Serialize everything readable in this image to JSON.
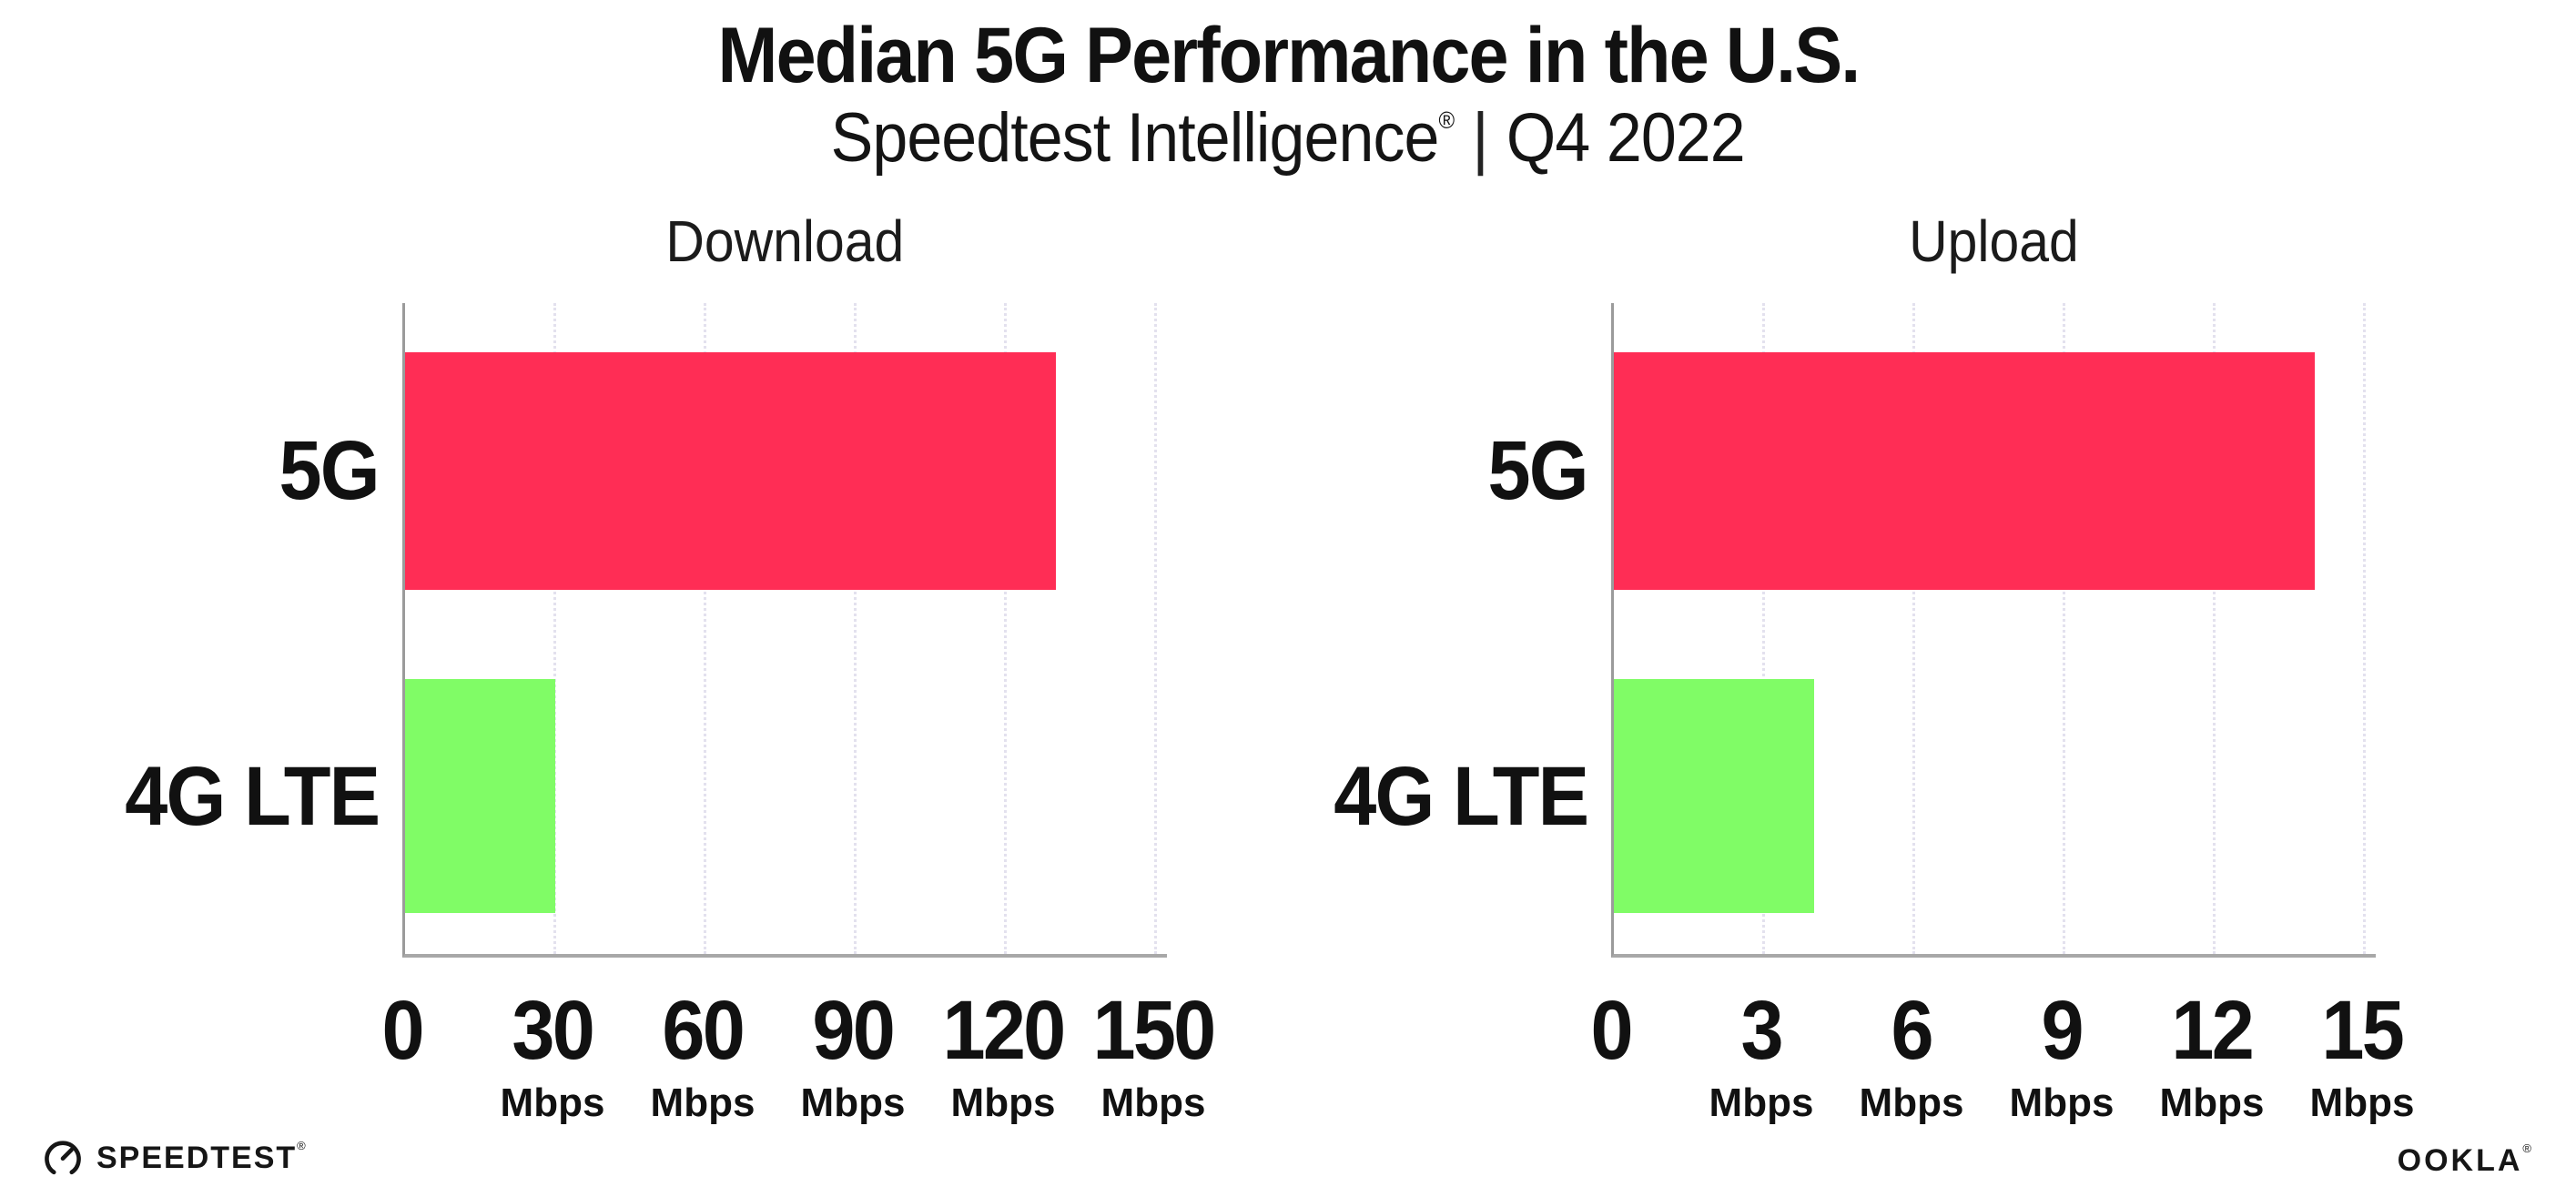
{
  "header": {
    "title": "Median 5G Performance in the U.S.",
    "subtitle_brand": "Speedtest Intelligence",
    "subtitle_reg": "®",
    "subtitle_sep": "|",
    "subtitle_period": "Q4 2022"
  },
  "chart_data": [
    {
      "type": "bar",
      "orientation": "horizontal",
      "title": "Download",
      "categories": [
        "5G",
        "4G LTE"
      ],
      "values": [
        130,
        30
      ],
      "unit": "Mbps",
      "xlim": [
        0,
        150
      ],
      "xticks": [
        0,
        30,
        60,
        90,
        120,
        150
      ],
      "bar_colors": [
        "#FF2D55",
        "#80FC66"
      ],
      "grid": "dotted-vertical",
      "legend": "none"
    },
    {
      "type": "bar",
      "orientation": "horizontal",
      "title": "Upload",
      "categories": [
        "5G",
        "4G LTE"
      ],
      "values": [
        14,
        4
      ],
      "unit": "Mbps",
      "xlim": [
        0,
        15
      ],
      "xticks": [
        0,
        3,
        6,
        9,
        12,
        15
      ],
      "bar_colors": [
        "#FF2D55",
        "#80FC66"
      ],
      "grid": "dotted-vertical",
      "legend": "none"
    }
  ],
  "footer": {
    "speedtest_label": "SPEEDTEST",
    "speedtest_reg": "®",
    "ookla_label": "OOKLA",
    "ookla_reg": "®"
  },
  "colors": {
    "bar_5g": "#FF2D55",
    "bar_4g_lte": "#80FC66",
    "axis": "#9b9b9b",
    "gridline": "#e3e1ee",
    "text": "#111111"
  }
}
